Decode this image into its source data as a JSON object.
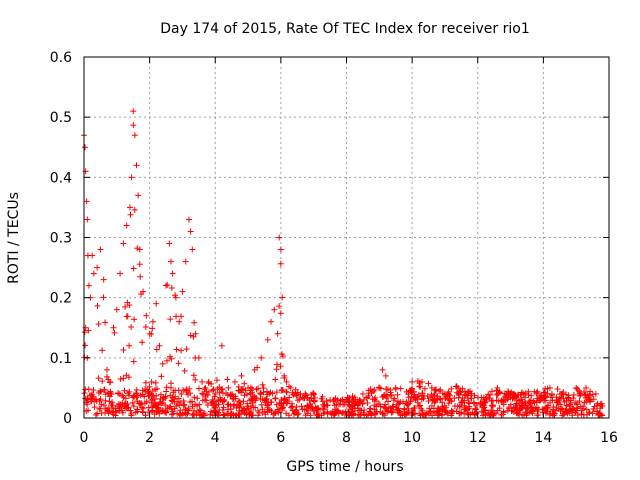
{
  "chart_data": {
    "type": "scatter",
    "title": "Day 174 of 2015, Rate Of TEC Index for receiver rio1",
    "xlabel": "GPS time / hours",
    "ylabel": "ROTI / TECUs",
    "xlim": [
      0,
      16
    ],
    "ylim": [
      0,
      0.6
    ],
    "xticks": [
      0,
      2,
      4,
      6,
      8,
      10,
      12,
      14,
      16
    ],
    "yticks": [
      0,
      0.1,
      0.2,
      0.3,
      0.4,
      0.5,
      0.6
    ],
    "xtick_labels": [
      "0",
      "2",
      "4",
      "6",
      "8",
      "10",
      "12",
      "14",
      "16"
    ],
    "ytick_labels": [
      "0",
      "0.1",
      "0.2",
      "0.3",
      "0.4",
      "0.5",
      "0.6"
    ],
    "grid": true,
    "marker": "+",
    "color": "#ff0000",
    "x_extent_hours": [
      0,
      15.8
    ],
    "series": [
      {
        "name": "ROTI",
        "x": [
          0.0,
          0.03,
          0.05,
          0.08,
          0.1,
          0.12,
          0.15,
          0.05,
          0.1,
          0.2,
          0.25,
          0.3,
          0.4,
          0.5,
          0.6,
          0.7,
          0.8,
          0.9,
          1.0,
          1.1,
          1.2,
          1.3,
          1.4,
          1.45,
          1.5,
          1.55,
          1.6,
          1.65,
          1.7,
          1.8,
          1.9,
          2.0,
          2.1,
          2.2,
          2.3,
          2.4,
          2.5,
          2.6,
          2.65,
          2.7,
          2.8,
          2.9,
          3.0,
          3.1,
          3.2,
          3.25,
          3.3,
          3.4,
          3.5,
          3.6,
          3.7,
          3.8,
          4.0,
          4.2,
          4.4,
          4.6,
          4.8,
          5.0,
          5.2,
          5.4,
          5.6,
          5.7,
          5.8,
          5.9,
          5.95,
          6.0,
          6.1,
          6.3,
          6.6,
          7.0,
          7.5,
          8.0,
          8.5,
          9.0,
          9.1,
          9.2,
          9.5,
          10.0,
          10.3,
          10.6,
          11.0,
          11.4,
          11.8,
          12.2,
          12.6,
          13.0,
          13.4,
          13.8,
          14.2,
          14.6,
          15.0,
          15.3,
          15.6,
          15.8
        ],
        "y": [
          0.47,
          0.45,
          0.41,
          0.36,
          0.33,
          0.27,
          0.22,
          0.15,
          0.1,
          0.2,
          0.27,
          0.24,
          0.25,
          0.28,
          0.23,
          0.08,
          0.06,
          0.15,
          0.18,
          0.24,
          0.29,
          0.32,
          0.35,
          0.4,
          0.51,
          0.47,
          0.42,
          0.37,
          0.28,
          0.21,
          0.17,
          0.14,
          0.16,
          0.19,
          0.12,
          0.09,
          0.22,
          0.29,
          0.26,
          0.24,
          0.2,
          0.16,
          0.21,
          0.26,
          0.33,
          0.31,
          0.28,
          0.14,
          0.1,
          0.06,
          0.05,
          0.06,
          0.04,
          0.12,
          0.05,
          0.06,
          0.07,
          0.05,
          0.08,
          0.1,
          0.13,
          0.16,
          0.18,
          0.14,
          0.3,
          0.28,
          0.07,
          0.05,
          0.04,
          0.04,
          0.03,
          0.03,
          0.04,
          0.05,
          0.08,
          0.07,
          0.05,
          0.06,
          0.06,
          0.05,
          0.04,
          0.05,
          0.04,
          0.03,
          0.05,
          0.04,
          0.04,
          0.04,
          0.05,
          0.04,
          0.05,
          0.05,
          0.04,
          0.02
        ]
      }
    ]
  }
}
